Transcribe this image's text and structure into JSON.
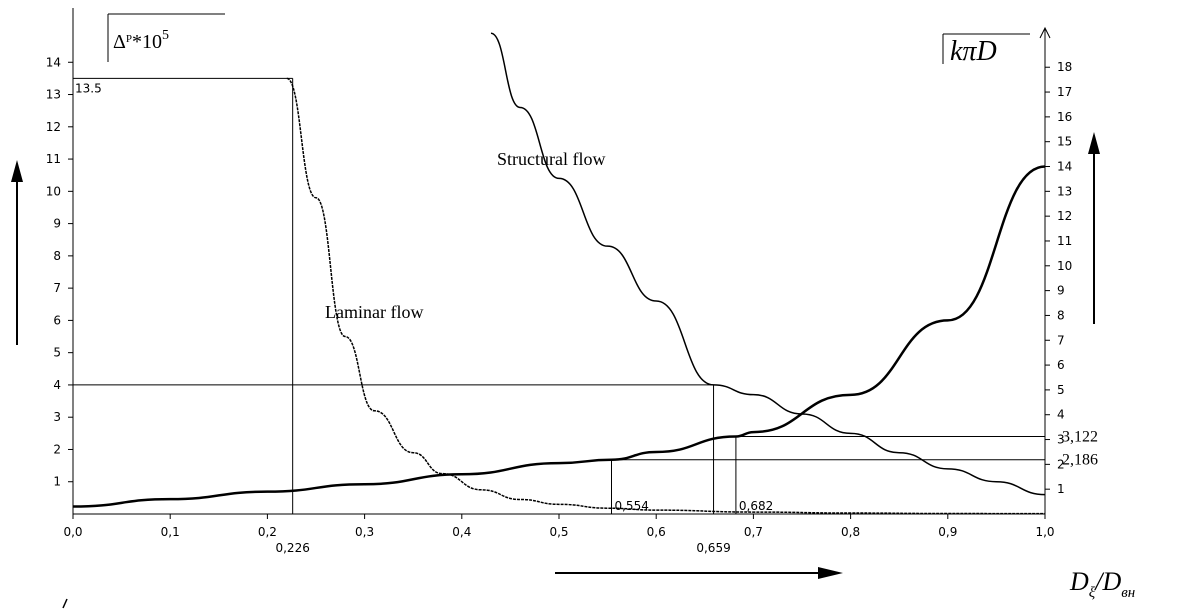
{
  "chart_data": {
    "type": "line",
    "title": "",
    "xlabel": {
      "base": "D",
      "sub1": "ξ",
      "slash": "/",
      "base2": "D",
      "sub2": "вн"
    },
    "ylabel_left": {
      "text": "Δ",
      "sup_prefix": "P",
      "mult": "*10",
      "exp": "5"
    },
    "ylabel_right": "kπD",
    "xlim": [
      0.0,
      1.0
    ],
    "ylim_left": [
      0,
      15
    ],
    "ylim_right": [
      0,
      19.5
    ],
    "x_ticks": [
      "0,0",
      "0,1",
      "0,2",
      "0,3",
      "0,4",
      "0,5",
      "0,6",
      "0,7",
      "0,8",
      "0,9",
      "1,0"
    ],
    "y_ticks_left": [
      "1",
      "2",
      "3",
      "4",
      "5",
      "6",
      "7",
      "8",
      "9",
      "10",
      "11",
      "12",
      "13",
      "14"
    ],
    "y_ticks_right": [
      "1",
      "2",
      "3",
      "4",
      "5",
      "6",
      "7",
      "8",
      "9",
      "10",
      "11",
      "12",
      "13",
      "14",
      "15",
      "16",
      "17",
      "18"
    ],
    "series": [
      {
        "name": "Laminar flow",
        "axis": "left",
        "x": [
          0.22,
          0.25,
          0.28,
          0.31,
          0.35,
          0.38,
          0.42,
          0.46,
          0.5,
          0.55,
          0.6,
          0.7,
          0.8,
          0.9,
          1.0
        ],
        "y": [
          13.5,
          9.8,
          5.5,
          3.2,
          1.9,
          1.25,
          0.75,
          0.45,
          0.3,
          0.18,
          0.12,
          0.06,
          0.03,
          0.015,
          0.01
        ]
      },
      {
        "name": "Structural flow",
        "axis": "left",
        "x": [
          0.43,
          0.46,
          0.5,
          0.55,
          0.6,
          0.659,
          0.7,
          0.75,
          0.8,
          0.85,
          0.9,
          0.95,
          1.0
        ],
        "y": [
          14.9,
          12.6,
          10.4,
          8.3,
          6.6,
          4.0,
          3.7,
          3.1,
          2.5,
          1.9,
          1.4,
          1.0,
          0.6
        ]
      },
      {
        "name": "",
        "axis": "right",
        "x": [
          0.0,
          0.1,
          0.2,
          0.3,
          0.4,
          0.5,
          0.554,
          0.6,
          0.682,
          0.7,
          0.8,
          0.9,
          1.0
        ],
        "y": [
          0.3,
          0.6,
          0.9,
          1.2,
          1.6,
          2.05,
          2.186,
          2.5,
          3.122,
          3.3,
          4.8,
          7.8,
          14.0
        ]
      }
    ],
    "annotations": {
      "y_left_13_5": "13.5",
      "x_0_226": "0,226",
      "x_0_554": "0,554",
      "x_0_659": "0,659",
      "x_0_682": "0,682",
      "y_right_3_122": "3,122",
      "y_right_2_186": "2,186",
      "laminar_label": "Laminar flow",
      "structural_label": "Structural flow"
    },
    "grid": false,
    "legend": "none"
  }
}
